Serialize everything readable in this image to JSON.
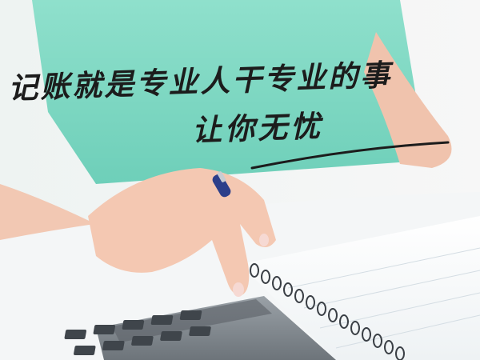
{
  "banner": {
    "headline": "记账就是专业人干专业的事",
    "subline": "让你无忧"
  },
  "colors": {
    "shirt": "#7fd6c2",
    "skin": "#f3c7b1",
    "calculator_body": "#7f878e",
    "calculator_keys": "#4b5157",
    "ink": "#1c1c1c"
  }
}
